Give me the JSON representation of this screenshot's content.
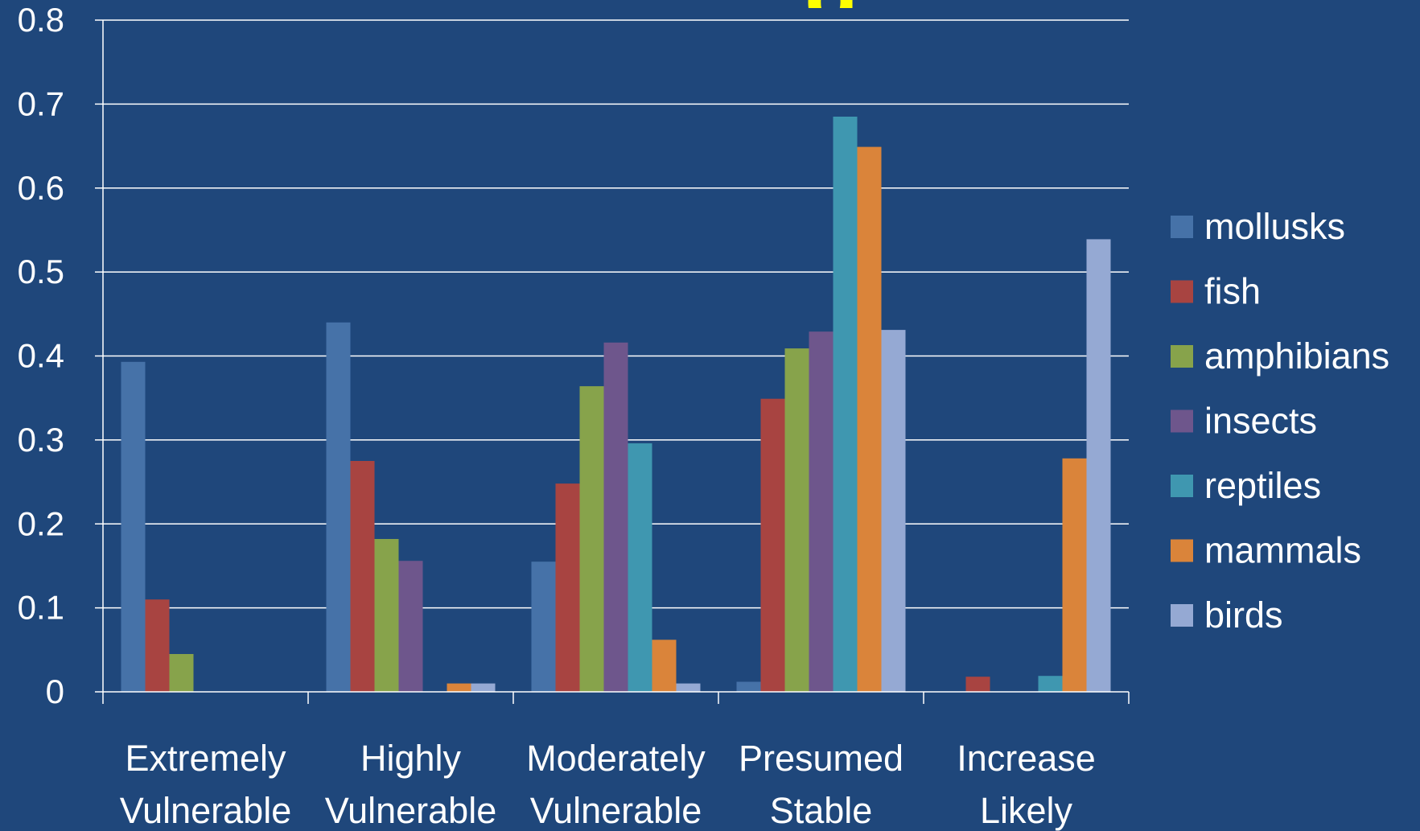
{
  "chart_data": {
    "type": "bar",
    "title_fragment": "g",
    "categories": [
      [
        "Extremely",
        "Vulnerable"
      ],
      [
        "Highly",
        "Vulnerable"
      ],
      [
        "Moderately",
        "Vulnerable"
      ],
      [
        "Presumed",
        "Stable"
      ],
      [
        "Increase",
        "Likely"
      ]
    ],
    "ylim": [
      0,
      0.8
    ],
    "yticks": [
      "0",
      "0.1",
      "0.2",
      "0.3",
      "0.4",
      "0.5",
      "0.6",
      "0.7",
      "0.8"
    ],
    "grid": true,
    "legend_position": "right",
    "series": [
      {
        "name": "mollusks",
        "color": "#4672a8",
        "values": [
          0.393,
          0.44,
          0.155,
          0.012,
          0
        ]
      },
      {
        "name": "fish",
        "color": "#a84441",
        "values": [
          0.11,
          0.275,
          0.248,
          0.349,
          0.018
        ]
      },
      {
        "name": "amphibians",
        "color": "#87a34b",
        "values": [
          0.045,
          0.182,
          0.364,
          0.409,
          0
        ]
      },
      {
        "name": "insects",
        "color": "#6e568c",
        "values": [
          0,
          0.156,
          0.416,
          0.429,
          0
        ]
      },
      {
        "name": "reptiles",
        "color": "#3f97b0",
        "values": [
          0,
          0,
          0.296,
          0.685,
          0.019
        ]
      },
      {
        "name": "mammals",
        "color": "#da843a",
        "values": [
          0,
          0.01,
          0.062,
          0.649,
          0.278
        ]
      },
      {
        "name": "birds",
        "color": "#95a9d3",
        "values": [
          0,
          0.01,
          0.01,
          0.431,
          0.539
        ]
      }
    ]
  }
}
